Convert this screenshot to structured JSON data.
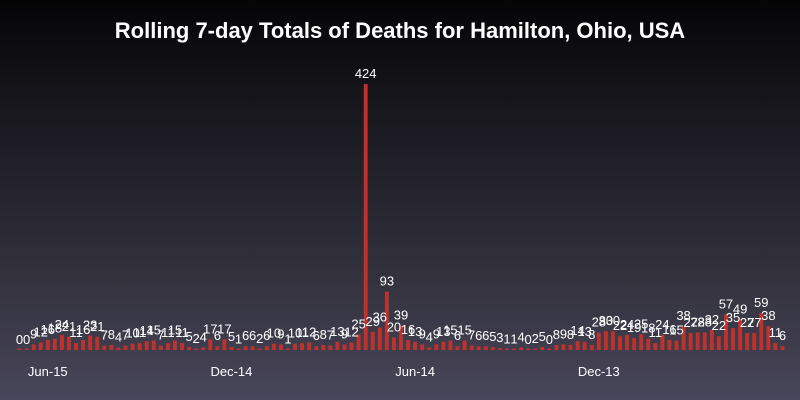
{
  "chart_data": {
    "type": "bar",
    "title": "Rolling 7-day Totals of Deaths for Hamilton, Ohio, USA",
    "xlabel": "",
    "ylabel": "",
    "ylim": [
      0,
      440
    ],
    "grid": false,
    "legend": "none",
    "bar_color": "#c0312b",
    "x_tick_labels": [
      "Jun-15",
      "Dec-14",
      "Jun-14",
      "Dec-13"
    ],
    "values": [
      0,
      0,
      9,
      12,
      16,
      18,
      24,
      21,
      11,
      16,
      23,
      21,
      7,
      8,
      4,
      7,
      10,
      11,
      14,
      15,
      7,
      11,
      15,
      11,
      5,
      2,
      4,
      17,
      6,
      17,
      5,
      1,
      6,
      6,
      2,
      6,
      10,
      9,
      1,
      10,
      11,
      12,
      6,
      8,
      7,
      13,
      9,
      12,
      25,
      424,
      29,
      36,
      93,
      20,
      39,
      16,
      13,
      9,
      4,
      9,
      13,
      15,
      6,
      15,
      7,
      6,
      6,
      5,
      3,
      1,
      1,
      4,
      0,
      2,
      5,
      0,
      8,
      9,
      8,
      14,
      13,
      8,
      28,
      30,
      30,
      22,
      24,
      19,
      25,
      18,
      11,
      24,
      16,
      15,
      38,
      27,
      28,
      28,
      32,
      22,
      57,
      35,
      49,
      27,
      27,
      59,
      38,
      11,
      6
    ]
  }
}
